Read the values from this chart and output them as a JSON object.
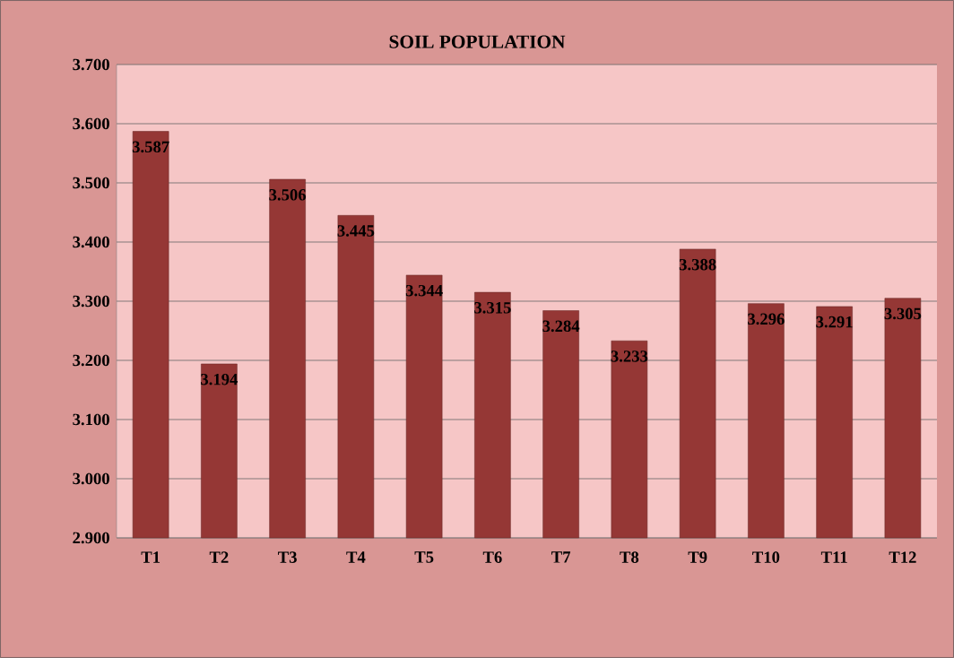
{
  "chart_data": {
    "type": "bar",
    "title": "SOIL POPULATION",
    "categories": [
      "T1",
      "T2",
      "T3",
      "T4",
      "T5",
      "T6",
      "T7",
      "T8",
      "T9",
      "T10",
      "T11",
      "T12"
    ],
    "values": [
      3.587,
      3.194,
      3.506,
      3.445,
      3.344,
      3.315,
      3.284,
      3.233,
      3.388,
      3.296,
      3.291,
      3.305
    ],
    "color": "#953735",
    "data_labels": true,
    "grid": "y",
    "ylim": [
      2.9,
      3.7
    ],
    "yticks": [
      {
        "value": 2.9,
        "label": "2.900"
      },
      {
        "value": 3.0,
        "label": "3.000"
      },
      {
        "value": 3.1,
        "label": "3.100"
      },
      {
        "value": 3.2,
        "label": "3.200"
      },
      {
        "value": 3.3,
        "label": "3.300"
      },
      {
        "value": 3.4,
        "label": "3.400"
      },
      {
        "value": 3.5,
        "label": "3.500"
      },
      {
        "value": 3.6,
        "label": "3.600"
      },
      {
        "value": 3.7,
        "label": "3.700"
      }
    ]
  }
}
